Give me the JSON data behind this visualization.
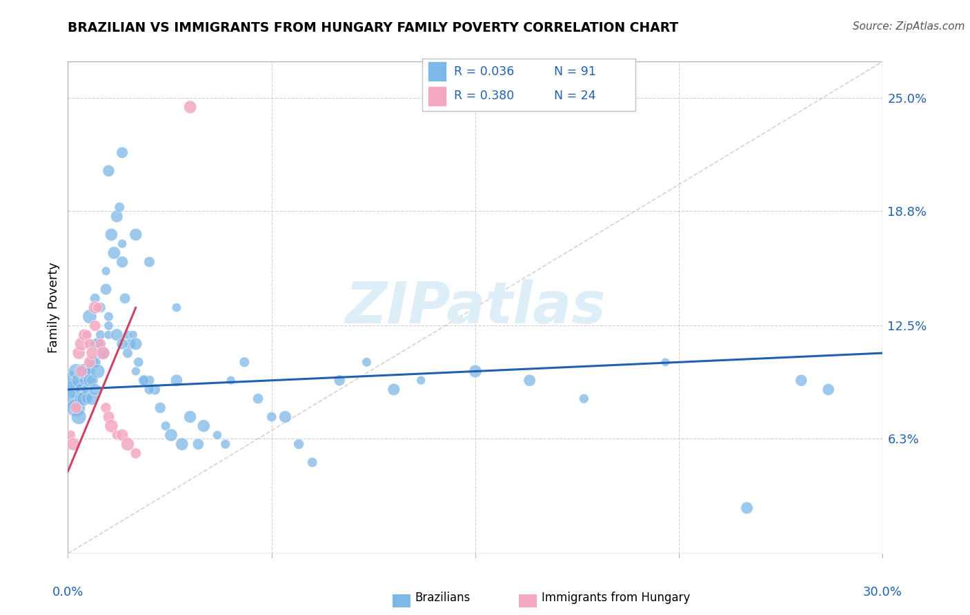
{
  "title": "BRAZILIAN VS IMMIGRANTS FROM HUNGARY FAMILY POVERTY CORRELATION CHART",
  "source": "Source: ZipAtlas.com",
  "ylabel": "Family Poverty",
  "y_tick_vals": [
    0.063,
    0.125,
    0.188,
    0.25
  ],
  "y_tick_labels": [
    "6.3%",
    "12.5%",
    "18.8%",
    "25.0%"
  ],
  "xlim": [
    0.0,
    0.3
  ],
  "ylim": [
    0.0,
    0.27
  ],
  "blue_color": "#7eb8e8",
  "pink_color": "#f4a8c0",
  "trend_blue": "#2060b0",
  "trend_pink": "#d04060",
  "gray_diag": "#c8c8c8",
  "watermark_color": "#ddeef8",
  "brazilians_x": [
    0.001,
    0.002,
    0.002,
    0.003,
    0.003,
    0.004,
    0.004,
    0.005,
    0.005,
    0.005,
    0.006,
    0.006,
    0.006,
    0.007,
    0.007,
    0.007,
    0.008,
    0.008,
    0.009,
    0.009,
    0.009,
    0.01,
    0.01,
    0.01,
    0.011,
    0.011,
    0.012,
    0.012,
    0.013,
    0.014,
    0.014,
    0.015,
    0.015,
    0.016,
    0.017,
    0.018,
    0.019,
    0.02,
    0.02,
    0.021,
    0.022,
    0.023,
    0.024,
    0.025,
    0.026,
    0.028,
    0.03,
    0.032,
    0.034,
    0.036,
    0.038,
    0.04,
    0.042,
    0.045,
    0.048,
    0.05,
    0.055,
    0.058,
    0.06,
    0.065,
    0.07,
    0.075,
    0.08,
    0.085,
    0.09,
    0.1,
    0.11,
    0.12,
    0.13,
    0.15,
    0.17,
    0.19,
    0.22,
    0.25,
    0.27,
    0.28,
    0.008,
    0.01,
    0.012,
    0.015,
    0.018,
    0.02,
    0.022,
    0.025,
    0.028,
    0.03,
    0.015,
    0.02,
    0.025,
    0.03,
    0.04
  ],
  "brazilians_y": [
    0.09,
    0.085,
    0.095,
    0.08,
    0.1,
    0.075,
    0.095,
    0.1,
    0.09,
    0.085,
    0.095,
    0.1,
    0.085,
    0.09,
    0.1,
    0.085,
    0.1,
    0.095,
    0.105,
    0.095,
    0.085,
    0.115,
    0.105,
    0.09,
    0.115,
    0.1,
    0.12,
    0.11,
    0.11,
    0.155,
    0.145,
    0.13,
    0.12,
    0.175,
    0.165,
    0.185,
    0.19,
    0.17,
    0.16,
    0.14,
    0.12,
    0.115,
    0.12,
    0.115,
    0.105,
    0.095,
    0.095,
    0.09,
    0.08,
    0.07,
    0.065,
    0.095,
    0.06,
    0.075,
    0.06,
    0.07,
    0.065,
    0.06,
    0.095,
    0.105,
    0.085,
    0.075,
    0.075,
    0.06,
    0.05,
    0.095,
    0.105,
    0.09,
    0.095,
    0.1,
    0.095,
    0.085,
    0.105,
    0.025,
    0.095,
    0.09,
    0.13,
    0.14,
    0.135,
    0.125,
    0.12,
    0.115,
    0.11,
    0.1,
    0.095,
    0.09,
    0.21,
    0.22,
    0.175,
    0.16,
    0.135
  ],
  "hungary_x": [
    0.001,
    0.002,
    0.003,
    0.004,
    0.005,
    0.005,
    0.006,
    0.007,
    0.008,
    0.008,
    0.009,
    0.01,
    0.01,
    0.011,
    0.012,
    0.013,
    0.014,
    0.015,
    0.016,
    0.018,
    0.02,
    0.022,
    0.025,
    0.045
  ],
  "hungary_y": [
    0.065,
    0.06,
    0.08,
    0.11,
    0.115,
    0.1,
    0.12,
    0.12,
    0.115,
    0.105,
    0.11,
    0.135,
    0.125,
    0.135,
    0.115,
    0.11,
    0.08,
    0.075,
    0.07,
    0.065,
    0.065,
    0.06,
    0.055,
    0.245
  ],
  "blue_trend_x": [
    0.0,
    0.3
  ],
  "blue_trend_y": [
    0.09,
    0.11
  ],
  "pink_trend_x": [
    0.0,
    0.025
  ],
  "pink_trend_y": [
    0.045,
    0.135
  ]
}
